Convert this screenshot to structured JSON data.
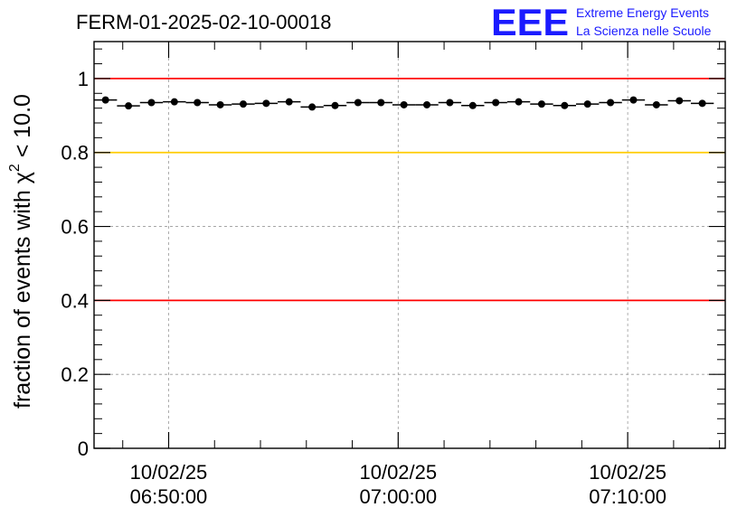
{
  "header": {
    "run_title": "FERM-01-2025-02-10-00018",
    "logo_text": "EEE",
    "logo_line1": "Extreme Energy Events",
    "logo_line2": "La Scienza nelle Scuole"
  },
  "colors": {
    "logo": "#1a1aff",
    "ref_red": "#ff0000",
    "ref_yellow": "#ffcc00",
    "markers": "#000000",
    "grid": "#999999"
  },
  "chart_data": {
    "type": "scatter",
    "title": "FERM-01-2025-02-10-00018",
    "ylabel": "fraction of events with χ² < 10.0",
    "ylabel_parts": {
      "main": "fraction of events with χ",
      "sup": "2",
      "tail": " < 10.0"
    },
    "xlabel": "",
    "x_axis": "time",
    "xlim": [
      "10/02/25 06:46:45",
      "10/02/25 07:14:15"
    ],
    "ylim": [
      0,
      1.1
    ],
    "yticks": [
      0,
      0.2,
      0.4,
      0.6,
      0.8,
      1
    ],
    "ytick_labels": [
      "0",
      "0.2",
      "0.4",
      "0.6",
      "0.8",
      "1"
    ],
    "xticks": [
      {
        "t": "10/02/25 06:50:00",
        "date": "10/02/25",
        "time": "06:50:00"
      },
      {
        "t": "10/02/25 07:00:00",
        "date": "10/02/25",
        "time": "07:00:00"
      },
      {
        "t": "10/02/25 07:10:00",
        "date": "10/02/25",
        "time": "07:10:00"
      }
    ],
    "grid": true,
    "reference_lines": [
      {
        "y": 1.0,
        "color": "#ff0000"
      },
      {
        "y": 0.8,
        "color": "#ffcc00"
      },
      {
        "y": 0.4,
        "color": "#ff0000"
      }
    ],
    "bin_width_seconds": 60,
    "series": [
      {
        "x": [
          "06:47:15",
          "06:48:15",
          "06:49:15",
          "06:50:15",
          "06:51:15",
          "06:52:15",
          "06:53:15",
          "06:54:15",
          "06:55:15",
          "06:56:15",
          "06:57:15",
          "06:58:15",
          "06:59:15",
          "07:00:15",
          "07:01:15",
          "07:02:15",
          "07:03:15",
          "07:04:15",
          "07:05:15",
          "07:06:15",
          "07:07:15",
          "07:08:15",
          "07:09:15",
          "07:10:15",
          "07:11:15",
          "07:12:15",
          "07:13:15"
        ],
        "y": [
          0.942,
          0.926,
          0.935,
          0.937,
          0.935,
          0.929,
          0.931,
          0.933,
          0.937,
          0.923,
          0.927,
          0.935,
          0.935,
          0.929,
          0.929,
          0.935,
          0.927,
          0.935,
          0.937,
          0.931,
          0.927,
          0.931,
          0.935,
          0.942,
          0.929,
          0.94,
          0.933
        ],
        "yerr": 0.004
      }
    ]
  }
}
